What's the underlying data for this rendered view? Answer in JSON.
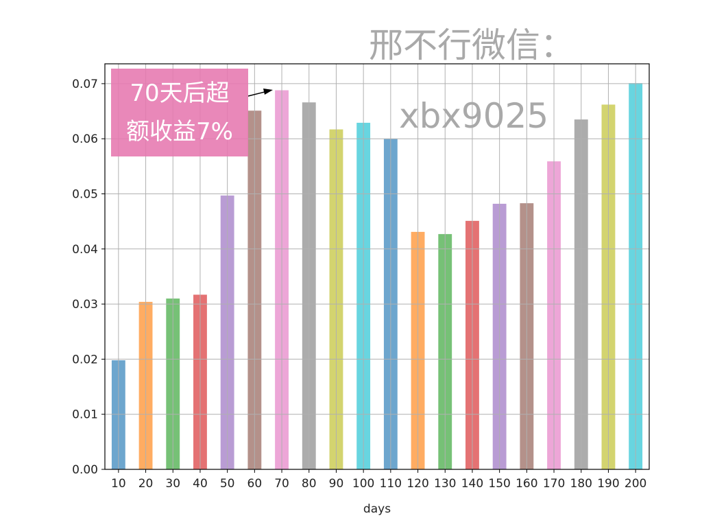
{
  "chart_data": {
    "type": "bar",
    "title": "",
    "xlabel": "days",
    "ylabel": "",
    "categories": [
      "10",
      "20",
      "30",
      "40",
      "50",
      "60",
      "70",
      "80",
      "90",
      "100",
      "110",
      "120",
      "130",
      "140",
      "150",
      "160",
      "170",
      "180",
      "190",
      "200"
    ],
    "values": [
      0.0198,
      0.0304,
      0.031,
      0.0317,
      0.0497,
      0.0651,
      0.0688,
      0.0666,
      0.0617,
      0.0629,
      0.06,
      0.0431,
      0.0427,
      0.0451,
      0.0482,
      0.0483,
      0.0559,
      0.0635,
      0.0662,
      0.0701
    ],
    "ylim": [
      0,
      0.0736
    ],
    "yticks": [
      "0.00",
      "0.01",
      "0.02",
      "0.03",
      "0.04",
      "0.05",
      "0.06",
      "0.07"
    ],
    "grid": true,
    "legend": "none",
    "colors": [
      "#1f77b4",
      "#ff7f0e",
      "#2ca02c",
      "#d62728",
      "#9467bd",
      "#8c564b",
      "#e377c2",
      "#7f7f7f",
      "#bcbd22",
      "#17becf"
    ],
    "bar_alpha": 0.65,
    "annotation": {
      "line1": "70天后超",
      "line2": "额收益7%",
      "target_category": "70",
      "box_color": "#e678af"
    },
    "watermark": {
      "line1": "邢不行微信：",
      "line2": "xbx9025"
    }
  }
}
